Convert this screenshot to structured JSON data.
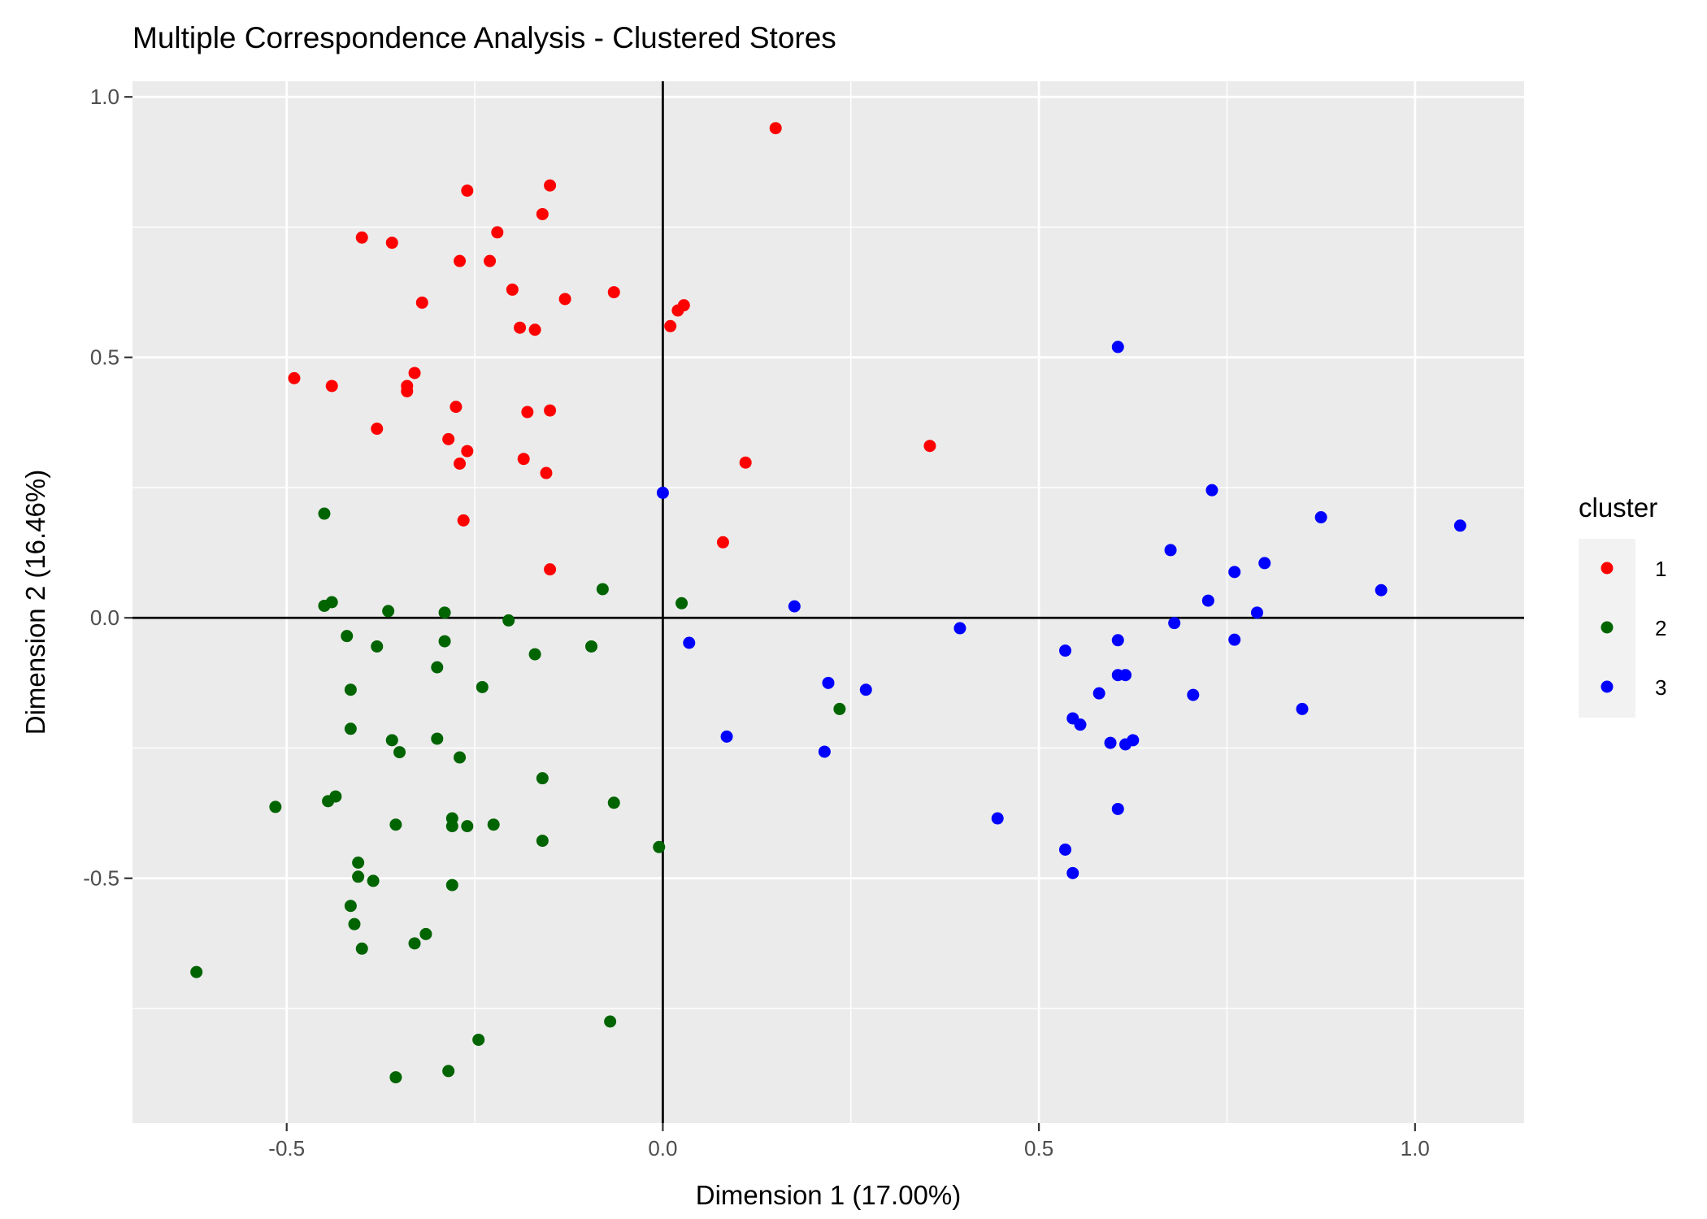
{
  "chart_data": {
    "type": "scatter",
    "title": "Multiple Correspondence Analysis - Clustered Stores",
    "xlabel": "Dimension 1 (17.00%)",
    "ylabel": "Dimension 2 (16.46%)",
    "xlim": [
      -0.705,
      1.145
    ],
    "ylim": [
      -0.97,
      1.03
    ],
    "xticks": [
      -0.5,
      0.0,
      0.5,
      1.0
    ],
    "yticks": [
      -0.5,
      0.0,
      0.5,
      1.0
    ],
    "xtick_labels": [
      "-0.5",
      "0.0",
      "0.5",
      "1.0"
    ],
    "ytick_labels": [
      "-0.5",
      "0.0",
      "0.5",
      "1.0"
    ],
    "grid": true,
    "reference_lines": {
      "x": 0,
      "y": 0
    },
    "legend": {
      "title": "cluster",
      "position": "right"
    },
    "colors": {
      "panel": "#ebebeb",
      "grid": "#ffffff",
      "tick_text": "#4d4d4d"
    },
    "series": [
      {
        "name": "1",
        "color": "#ff0000",
        "points": [
          [
            0.15,
            0.94
          ],
          [
            -0.15,
            0.83
          ],
          [
            -0.26,
            0.82
          ],
          [
            -0.16,
            0.775
          ],
          [
            -0.4,
            0.73
          ],
          [
            -0.22,
            0.74
          ],
          [
            -0.36,
            0.72
          ],
          [
            -0.27,
            0.685
          ],
          [
            -0.23,
            0.685
          ],
          [
            -0.2,
            0.63
          ],
          [
            -0.065,
            0.625
          ],
          [
            -0.13,
            0.612
          ],
          [
            -0.32,
            0.605
          ],
          [
            0.028,
            0.6
          ],
          [
            0.02,
            0.59
          ],
          [
            0.01,
            0.56
          ],
          [
            -0.19,
            0.557
          ],
          [
            -0.17,
            0.553
          ],
          [
            -0.49,
            0.46
          ],
          [
            -0.44,
            0.445
          ],
          [
            -0.33,
            0.47
          ],
          [
            -0.34,
            0.445
          ],
          [
            -0.34,
            0.435
          ],
          [
            -0.275,
            0.405
          ],
          [
            -0.18,
            0.395
          ],
          [
            -0.15,
            0.398
          ],
          [
            -0.38,
            0.363
          ],
          [
            -0.285,
            0.343
          ],
          [
            -0.26,
            0.32
          ],
          [
            -0.185,
            0.305
          ],
          [
            -0.27,
            0.296
          ],
          [
            -0.155,
            0.278
          ],
          [
            0.11,
            0.298
          ],
          [
            0.355,
            0.33
          ],
          [
            -0.265,
            0.187
          ],
          [
            0.08,
            0.145
          ],
          [
            -0.15,
            0.093
          ]
        ]
      },
      {
        "name": "2",
        "color": "#006400",
        "points": [
          [
            -0.45,
            0.2
          ],
          [
            -0.08,
            0.055
          ],
          [
            -0.45,
            0.023
          ],
          [
            -0.44,
            0.03
          ],
          [
            -0.365,
            0.013
          ],
          [
            -0.29,
            0.01
          ],
          [
            0.025,
            0.028
          ],
          [
            -0.205,
            -0.005
          ],
          [
            -0.42,
            -0.035
          ],
          [
            -0.38,
            -0.055
          ],
          [
            -0.29,
            -0.045
          ],
          [
            -0.17,
            -0.07
          ],
          [
            -0.095,
            -0.055
          ],
          [
            -0.3,
            -0.095
          ],
          [
            -0.415,
            -0.138
          ],
          [
            -0.24,
            -0.133
          ],
          [
            -0.415,
            -0.213
          ],
          [
            -0.36,
            -0.235
          ],
          [
            -0.3,
            -0.232
          ],
          [
            -0.35,
            -0.258
          ],
          [
            -0.27,
            -0.268
          ],
          [
            0.235,
            -0.175
          ],
          [
            -0.16,
            -0.308
          ],
          [
            -0.435,
            -0.343
          ],
          [
            -0.445,
            -0.352
          ],
          [
            -0.065,
            -0.355
          ],
          [
            -0.515,
            -0.363
          ],
          [
            -0.28,
            -0.385
          ],
          [
            -0.28,
            -0.4
          ],
          [
            -0.26,
            -0.4
          ],
          [
            -0.225,
            -0.397
          ],
          [
            -0.355,
            -0.397
          ],
          [
            -0.16,
            -0.428
          ],
          [
            -0.005,
            -0.44
          ],
          [
            -0.405,
            -0.47
          ],
          [
            -0.405,
            -0.497
          ],
          [
            -0.385,
            -0.505
          ],
          [
            -0.28,
            -0.513
          ],
          [
            -0.415,
            -0.553
          ],
          [
            -0.41,
            -0.588
          ],
          [
            -0.315,
            -0.607
          ],
          [
            -0.33,
            -0.625
          ],
          [
            -0.4,
            -0.635
          ],
          [
            -0.62,
            -0.68
          ],
          [
            -0.07,
            -0.775
          ],
          [
            -0.245,
            -0.81
          ],
          [
            -0.285,
            -0.87
          ],
          [
            -0.355,
            -0.882
          ]
        ]
      },
      {
        "name": "3",
        "color": "#0000ff",
        "points": [
          [
            0.605,
            0.52
          ],
          [
            0.73,
            0.245
          ],
          [
            0.0,
            0.24
          ],
          [
            1.06,
            0.177
          ],
          [
            0.875,
            0.193
          ],
          [
            0.675,
            0.13
          ],
          [
            0.8,
            0.105
          ],
          [
            0.76,
            0.088
          ],
          [
            0.955,
            0.053
          ],
          [
            0.725,
            0.033
          ],
          [
            0.175,
            0.022
          ],
          [
            0.79,
            0.01
          ],
          [
            0.68,
            -0.01
          ],
          [
            0.395,
            -0.02
          ],
          [
            0.035,
            -0.048
          ],
          [
            0.605,
            -0.043
          ],
          [
            0.76,
            -0.042
          ],
          [
            0.535,
            -0.063
          ],
          [
            0.605,
            -0.11
          ],
          [
            0.615,
            -0.11
          ],
          [
            0.22,
            -0.125
          ],
          [
            0.27,
            -0.138
          ],
          [
            0.58,
            -0.145
          ],
          [
            0.705,
            -0.148
          ],
          [
            0.85,
            -0.175
          ],
          [
            0.545,
            -0.193
          ],
          [
            0.555,
            -0.205
          ],
          [
            0.595,
            -0.24
          ],
          [
            0.615,
            -0.243
          ],
          [
            0.625,
            -0.235
          ],
          [
            0.085,
            -0.228
          ],
          [
            0.215,
            -0.257
          ],
          [
            0.445,
            -0.385
          ],
          [
            0.605,
            -0.367
          ],
          [
            0.535,
            -0.445
          ],
          [
            0.545,
            -0.49
          ]
        ]
      }
    ]
  }
}
